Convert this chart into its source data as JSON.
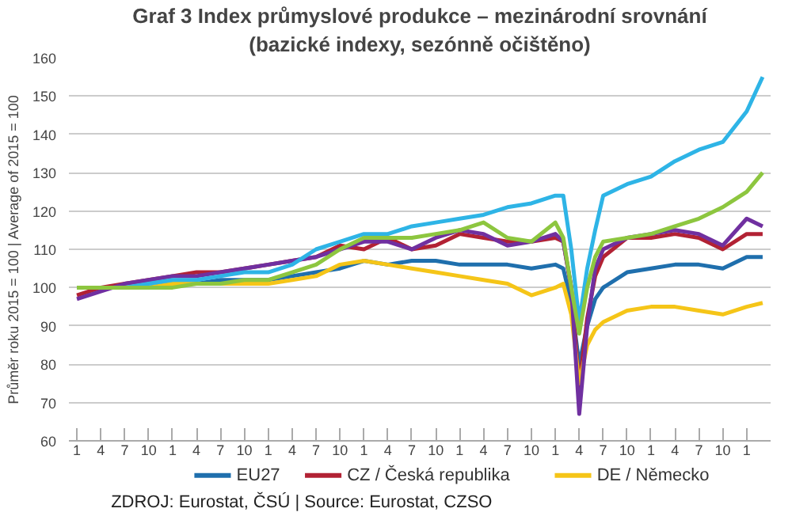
{
  "chart_data": {
    "type": "line",
    "title": "Graf 3 Index průmyslové produkce – mezinárodní srovnání",
    "subtitle": "(bazické indexy, sezónně očištěno)",
    "ylabel": "Průměr roku 2015 = 100 | Average of 2015 = 100",
    "annotations": [
      "ZDROJ: Eurostat, ČSÚ | Source: Eurostat, CZSO"
    ],
    "x": [
      "2015-01",
      "2015-04",
      "2015-07",
      "2015-10",
      "2016-01",
      "2016-04",
      "2016-07",
      "2016-10",
      "2017-01",
      "2017-04",
      "2017-07",
      "2017-10",
      "2018-01",
      "2018-04",
      "2018-07",
      "2018-10",
      "2019-01",
      "2019-04",
      "2019-07",
      "2019-10",
      "2020-01",
      "2020-02",
      "2020-03",
      "2020-04",
      "2020-05",
      "2020-06",
      "2020-07",
      "2020-10",
      "2021-01",
      "2021-04",
      "2021-07",
      "2021-10",
      "2022-01",
      "2022-03"
    ],
    "series": [
      {
        "name": "EU27",
        "color": "#1f6fad",
        "values": [
          100,
          100,
          100,
          100,
          101,
          101,
          102,
          102,
          102,
          103,
          104,
          105,
          107,
          106,
          107,
          107,
          106,
          106,
          106,
          105,
          106,
          105,
          96,
          80,
          90,
          97,
          100,
          104,
          105,
          106,
          106,
          105,
          108,
          108
        ]
      },
      {
        "name": "CZ / Česká republika",
        "color": "#b22234",
        "values": [
          98,
          100,
          101,
          102,
          103,
          104,
          104,
          105,
          106,
          107,
          108,
          111,
          110,
          113,
          110,
          111,
          114,
          113,
          112,
          112,
          113,
          112,
          100,
          74,
          92,
          103,
          108,
          113,
          113,
          114,
          113,
          110,
          114,
          114
        ]
      },
      {
        "name": "DE / Německo",
        "color": "#f5c518",
        "values": [
          null,
          null,
          100,
          100,
          101,
          101,
          101,
          101,
          101,
          102,
          103,
          106,
          107,
          106,
          105,
          104,
          103,
          102,
          101,
          98,
          100,
          101,
          93,
          75,
          85,
          89,
          91,
          94,
          95,
          95,
          94,
          93,
          95,
          96
        ]
      },
      {
        "color": "#7030a0",
        "values": [
          97,
          99,
          101,
          102,
          103,
          103,
          104,
          105,
          106,
          107,
          108,
          110,
          112,
          112,
          110,
          113,
          115,
          114,
          111,
          112,
          114,
          112,
          100,
          67,
          90,
          105,
          110,
          113,
          114,
          115,
          114,
          111,
          118,
          116
        ]
      },
      {
        "color": "#2eb4e6",
        "values": [
          100,
          100,
          100,
          101,
          102,
          102,
          103,
          104,
          104,
          106,
          110,
          112,
          114,
          114,
          116,
          117,
          118,
          119,
          121,
          122,
          124,
          124,
          110,
          91,
          105,
          115,
          124,
          127,
          129,
          133,
          136,
          138,
          146,
          155
        ]
      },
      {
        "color": "#8dc63f",
        "values": [
          100,
          100,
          100,
          100,
          100,
          101,
          101,
          102,
          102,
          104,
          106,
          110,
          113,
          113,
          113,
          114,
          115,
          117,
          113,
          112,
          117,
          113,
          100,
          88,
          100,
          108,
          112,
          113,
          114,
          116,
          118,
          121,
          125,
          130
        ]
      }
    ],
    "xlim": [
      "2014-12",
      "2022-04"
    ],
    "xticks": [
      {
        "value": "2015-01",
        "label": "1"
      },
      {
        "value": "2015-04",
        "label": "4"
      },
      {
        "value": "2015-07",
        "label": "7"
      },
      {
        "value": "2015-10",
        "label": "10"
      },
      {
        "value": "2016-01",
        "label": "1"
      },
      {
        "value": "2016-04",
        "label": "4"
      },
      {
        "value": "2016-07",
        "label": "7"
      },
      {
        "value": "2016-10",
        "label": "10"
      },
      {
        "value": "2017-01",
        "label": "1"
      },
      {
        "value": "2017-04",
        "label": "4"
      },
      {
        "value": "2017-07",
        "label": "7"
      },
      {
        "value": "2017-10",
        "label": "10"
      },
      {
        "value": "2018-01",
        "label": "1"
      },
      {
        "value": "2018-04",
        "label": "4"
      },
      {
        "value": "2018-07",
        "label": "7"
      },
      {
        "value": "2018-10",
        "label": "10"
      },
      {
        "value": "2019-01",
        "label": "1"
      },
      {
        "value": "2019-04",
        "label": "4"
      },
      {
        "value": "2019-07",
        "label": "7"
      },
      {
        "value": "2019-10",
        "label": "10"
      },
      {
        "value": "2020-01",
        "label": "1"
      },
      {
        "value": "2020-04",
        "label": "4"
      },
      {
        "value": "2020-07",
        "label": "7"
      },
      {
        "value": "2020-10",
        "label": "10"
      },
      {
        "value": "2021-01",
        "label": "1"
      },
      {
        "value": "2021-04",
        "label": "4"
      },
      {
        "value": "2021-07",
        "label": "7"
      },
      {
        "value": "2021-10",
        "label": "10"
      },
      {
        "value": "2022-01",
        "label": "1"
      }
    ],
    "ylim": [
      60,
      160
    ],
    "yticks": [
      60,
      70,
      80,
      90,
      100,
      110,
      120,
      130,
      140,
      150,
      160
    ],
    "grid": "y",
    "legend": "bottom"
  }
}
